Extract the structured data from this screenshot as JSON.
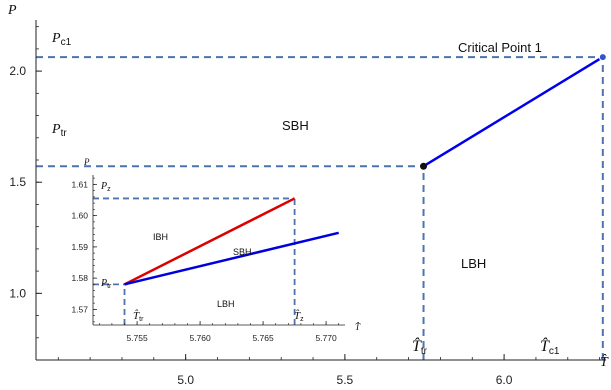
{
  "chart_data": [
    {
      "type": "line",
      "xlabel": "T̂",
      "ylabel": "P",
      "xlim": [
        4.53,
        6.32
      ],
      "ylim": [
        0.7,
        2.23
      ],
      "xticks": [
        5.0,
        5.5,
        6.0
      ],
      "xtick_labels": [
        "5.0",
        "5.5",
        "6.0"
      ],
      "yticks": [
        1.0,
        1.5,
        2.0
      ],
      "ytick_labels": [
        "1.0",
        "1.5",
        "2.0"
      ],
      "series": [
        {
          "color": "#0000ee",
          "x": [
            5.747,
            6.31
          ],
          "y": [
            1.572,
            2.063
          ]
        }
      ],
      "points": [
        {
          "x": 5.747,
          "y": 1.572,
          "color": "#111111"
        },
        {
          "x": 6.31,
          "y": 2.063,
          "color": "#3355cc"
        }
      ],
      "guides": [
        {
          "x": [
            4.53,
            6.31
          ],
          "y": [
            2.063,
            2.063
          ]
        },
        {
          "x": [
            4.53,
            5.747
          ],
          "y": [
            1.572,
            1.572
          ]
        },
        {
          "x": [
            5.747,
            5.747
          ],
          "y": [
            0.7,
            1.572
          ]
        },
        {
          "x": [
            6.31,
            6.31
          ],
          "y": [
            0.7,
            2.063
          ]
        }
      ],
      "annotations": {
        "critical_point": "Critical Point 1",
        "sbh": "SBH",
        "lbh": "LBH",
        "p_c1_main": "P",
        "p_c1_sub": "c1",
        "p_tr_main": "P",
        "p_tr_sub": "tr",
        "t_tr_main": "T̂",
        "t_tr_sub": "tr",
        "t_c1_main": "T̂",
        "t_c1_sub": "c1"
      }
    },
    {
      "type": "line",
      "xlabel": "T̂",
      "ylabel": "P",
      "xlim": [
        5.7515,
        5.7715
      ],
      "ylim": [
        1.565,
        1.613
      ],
      "xticks": [
        5.755,
        5.76,
        5.765,
        5.77
      ],
      "xtick_labels": [
        "5.755",
        "5.760",
        "5.765",
        "5.770"
      ],
      "yticks": [
        1.57,
        1.58,
        1.59,
        1.6,
        1.61
      ],
      "ytick_labels": [
        "1.57",
        "1.58",
        "1.59",
        "1.60",
        "1.61"
      ],
      "series": [
        {
          "color": "#dd0000",
          "x": [
            5.754,
            5.7675
          ],
          "y": [
            1.578,
            1.6055
          ]
        },
        {
          "color": "#0000dd",
          "x": [
            5.754,
            5.771
          ],
          "y": [
            1.578,
            1.5945
          ]
        }
      ],
      "guides": [
        {
          "x": [
            5.7515,
            5.7675
          ],
          "y": [
            1.6055,
            1.6055
          ]
        },
        {
          "x": [
            5.7515,
            5.754
          ],
          "y": [
            1.578,
            1.578
          ]
        },
        {
          "x": [
            5.754,
            5.754
          ],
          "y": [
            1.565,
            1.578
          ]
        },
        {
          "x": [
            5.7675,
            5.7675
          ],
          "y": [
            1.565,
            1.6055
          ]
        }
      ],
      "annotations": {
        "ibh": "IBH",
        "sbh": "SBH",
        "lbh": "LBH",
        "p_z_main": "P",
        "p_z_sub": "z",
        "p_tr_main": "P",
        "p_tr_sub": "tr",
        "t_tr_main": "T̂",
        "t_tr_sub": "tr",
        "t_z_main": "T̂",
        "t_z_sub": "z"
      }
    }
  ]
}
